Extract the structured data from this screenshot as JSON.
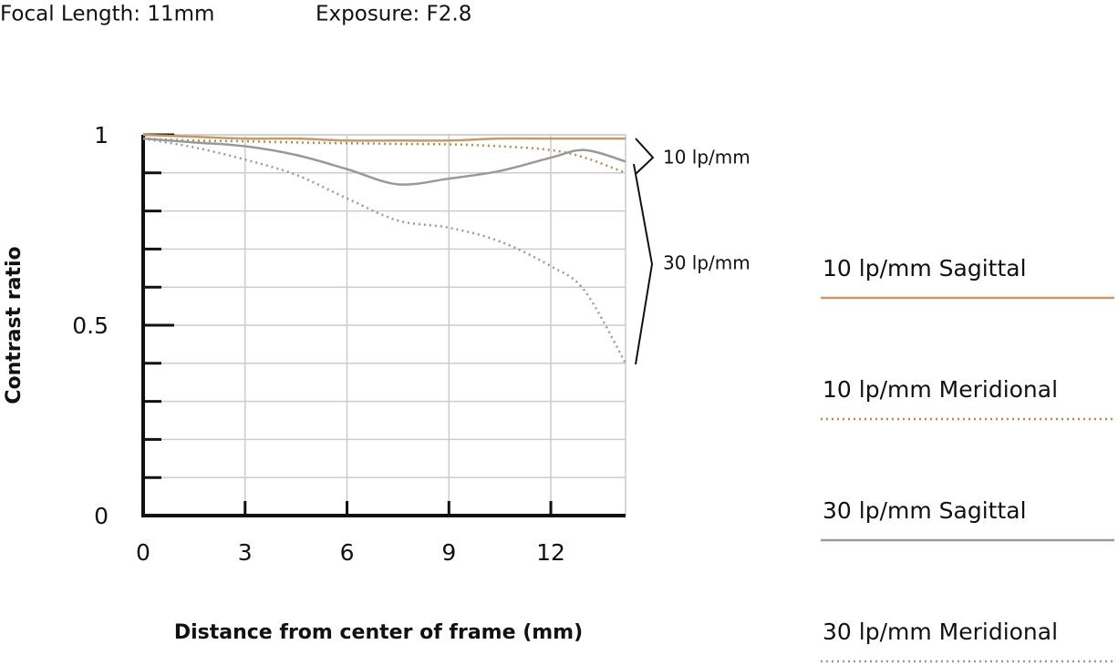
{
  "header": {
    "focal_length": "Focal Length: 11mm",
    "exposure": "Exposure: F2.8"
  },
  "chart_data": {
    "type": "line",
    "ylabel": "Contrast ratio",
    "xlabel": "Distance from center of frame (mm)",
    "x": [
      0,
      1.5,
      3,
      4.5,
      6,
      7.5,
      9,
      10.5,
      12,
      13,
      14.2
    ],
    "xlim": [
      0,
      14.2
    ],
    "xticks": [
      0,
      3,
      6,
      9,
      12
    ],
    "ylim": [
      0,
      1
    ],
    "yticks": [
      0,
      0.5,
      1
    ],
    "yminorticks": [
      0.1,
      0.2,
      0.3,
      0.4,
      0.6,
      0.7,
      0.8,
      0.9
    ],
    "grid": true,
    "series": [
      {
        "name": "10 lp/mm Sagittal",
        "color": "#c39a6b",
        "dash": false,
        "values": [
          1,
          0.995,
          0.99,
          0.99,
          0.985,
          0.985,
          0.985,
          0.99,
          0.99,
          0.99,
          0.99
        ]
      },
      {
        "name": "10 lp/mm Meridional",
        "color": "#b8894f",
        "dash": true,
        "values": [
          0.99,
          0.985,
          0.983,
          0.98,
          0.978,
          0.976,
          0.975,
          0.97,
          0.96,
          0.94,
          0.9
        ]
      },
      {
        "name": "30 lp/mm Sagittal",
        "color": "#999999",
        "dash": false,
        "values": [
          0.99,
          0.98,
          0.97,
          0.947,
          0.91,
          0.87,
          0.885,
          0.905,
          0.94,
          0.96,
          0.93
        ]
      },
      {
        "name": "30 lp/mm Meridional",
        "color": "#999999",
        "dash": true,
        "values": [
          0.99,
          0.967,
          0.935,
          0.895,
          0.833,
          0.775,
          0.756,
          0.72,
          0.655,
          0.59,
          0.4
        ]
      }
    ],
    "annotations": [
      "10 lp/mm",
      "30 lp/mm"
    ]
  }
}
